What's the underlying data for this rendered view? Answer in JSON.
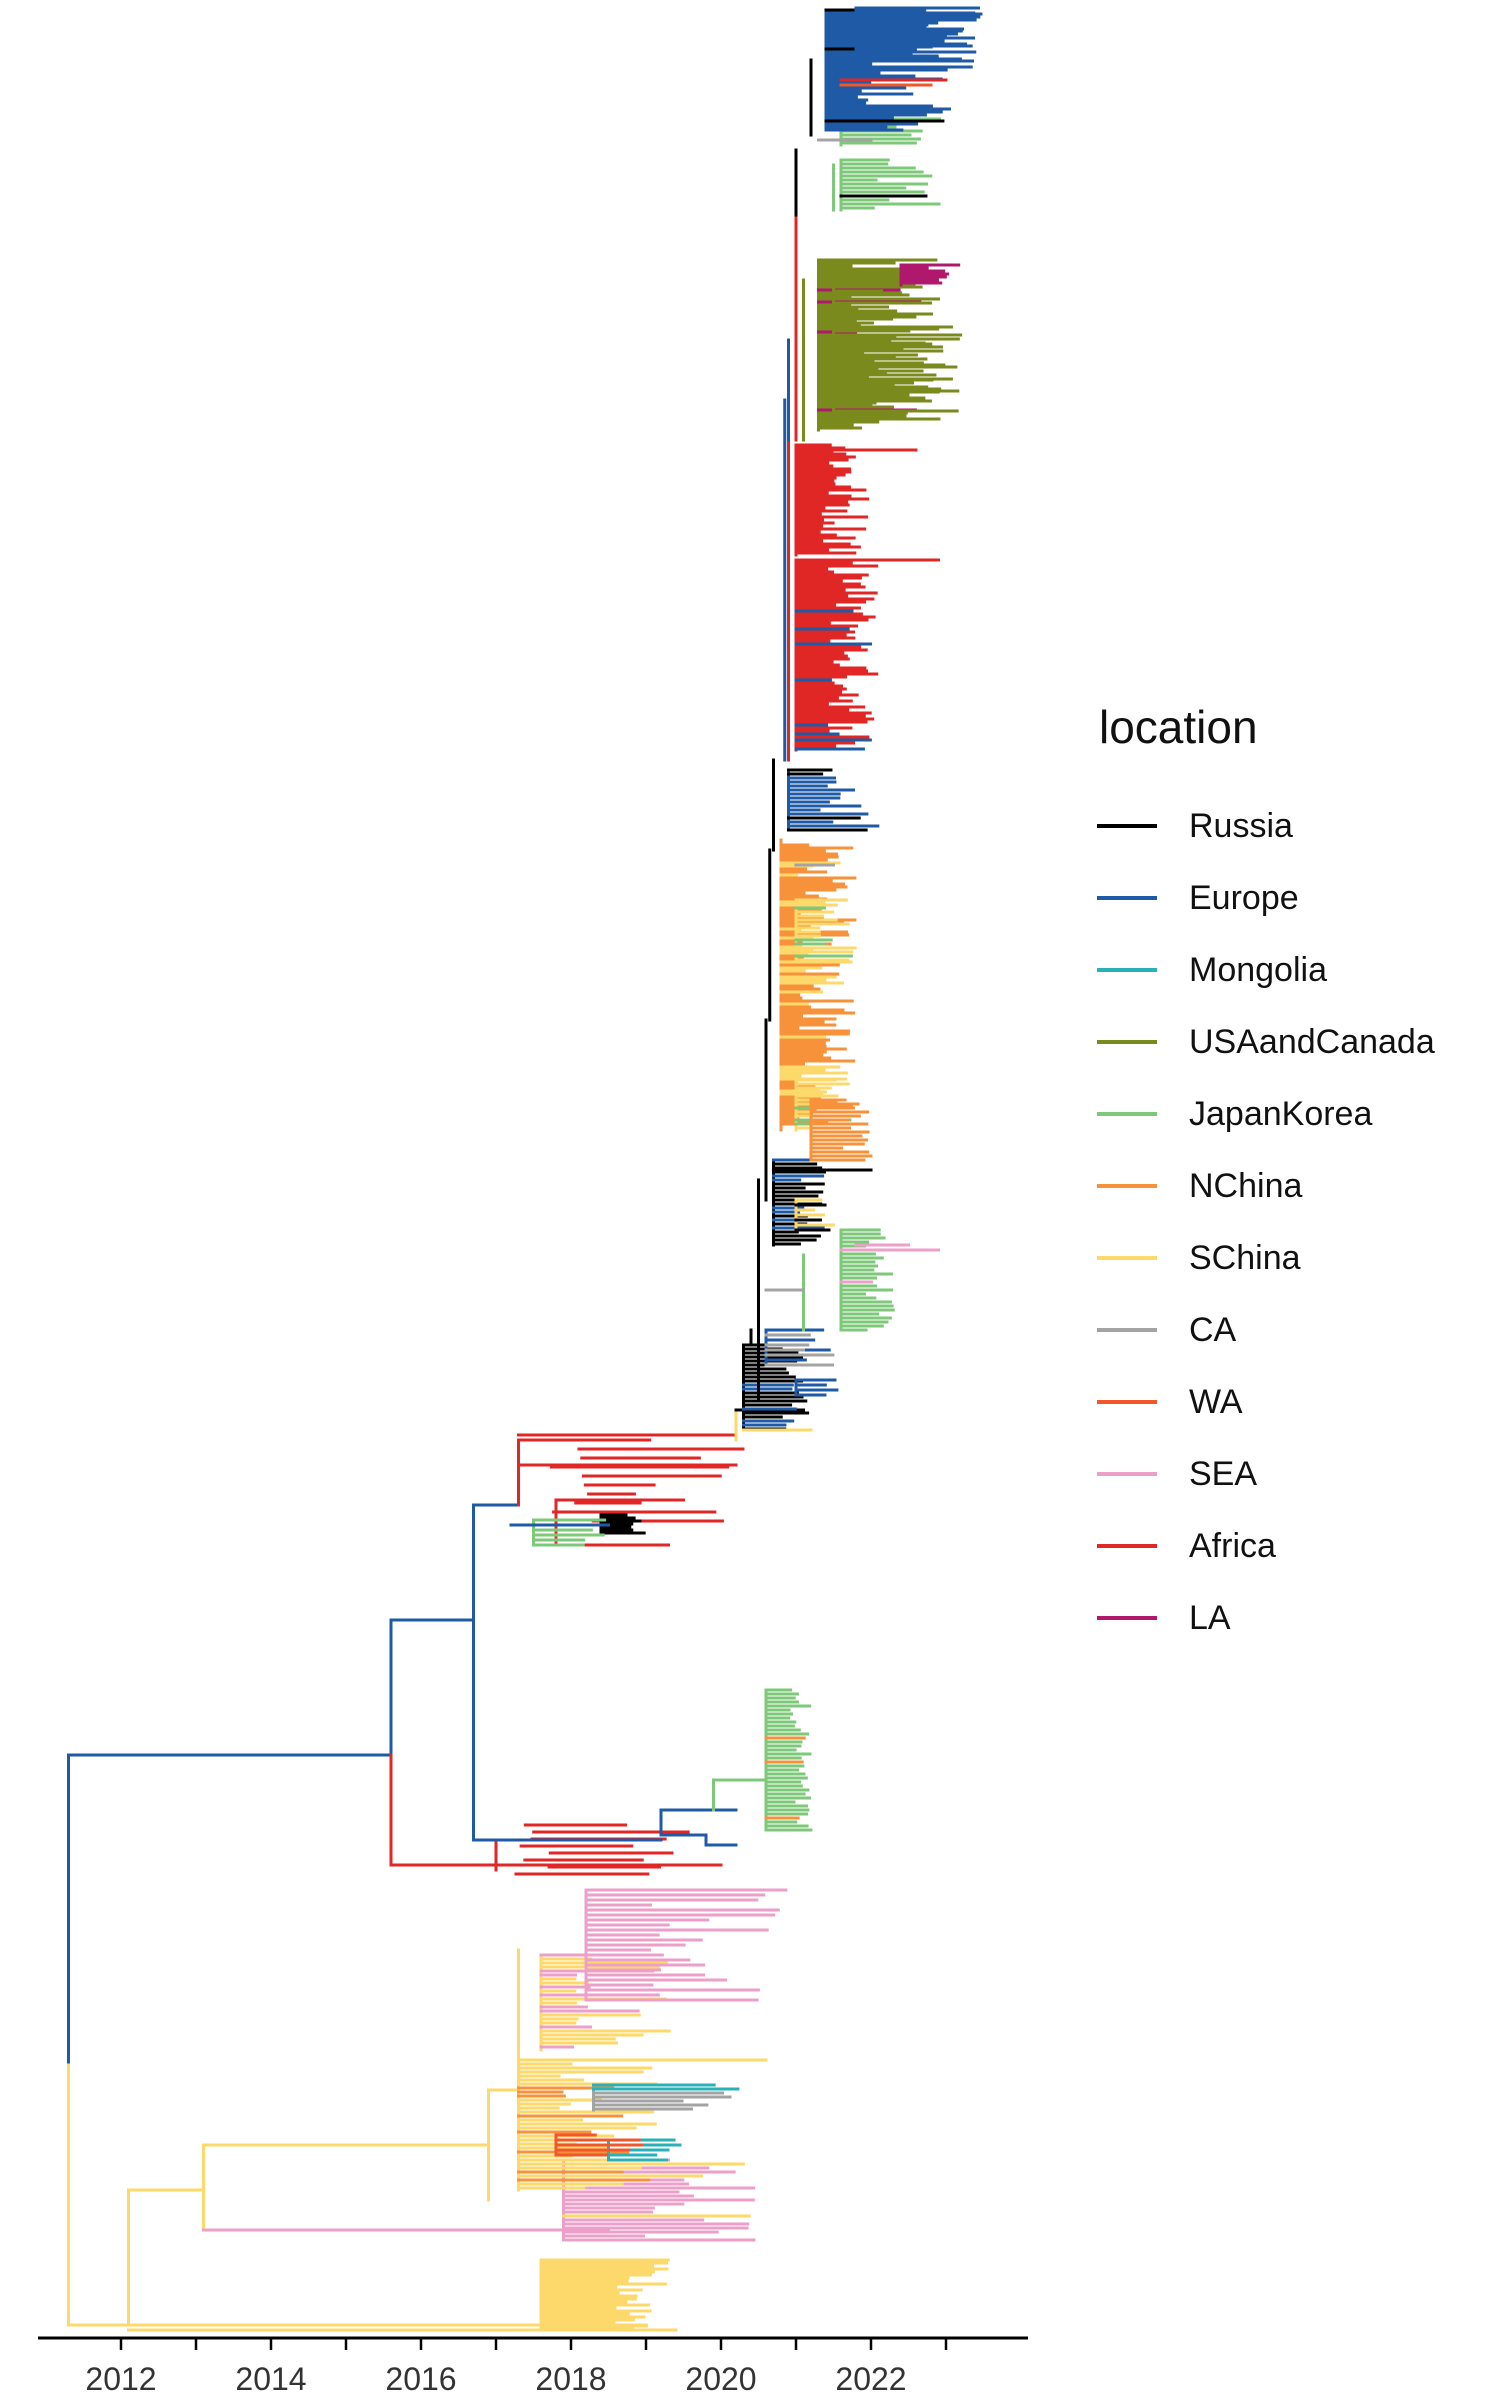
{
  "chart_data": {
    "type": "phylogenetic-tree",
    "xlabel": "",
    "ylabel": "",
    "xlim": [
      2011,
      2024
    ],
    "x_ticks": [
      "2012",
      "2014",
      "2016",
      "2018",
      "2020",
      "2022"
    ],
    "grid": false,
    "legend": {
      "title": "location",
      "placement": "right",
      "entries": [
        {
          "name": "Russia",
          "color": "#000000"
        },
        {
          "name": "Europe",
          "color": "#1f5aa6"
        },
        {
          "name": "Mongolia",
          "color": "#2ab0b8"
        },
        {
          "name": "USAandCanada",
          "color": "#7a8a1d"
        },
        {
          "name": "JapanKorea",
          "color": "#7ec87a"
        },
        {
          "name": "NChina",
          "color": "#f7923a"
        },
        {
          "name": "SChina",
          "color": "#fcd96a"
        },
        {
          "name": "CA",
          "color": "#a3a3a3"
        },
        {
          "name": "WA",
          "color": "#f2562b"
        },
        {
          "name": "SEA",
          "color": "#ec9fc8"
        },
        {
          "name": "Africa",
          "color": "#e12626"
        },
        {
          "name": "LA",
          "color": "#b0186e"
        }
      ]
    },
    "root": {
      "year": 2011.3,
      "location": "Europe/SChina"
    },
    "clades": [
      {
        "location": "Europe",
        "from": 2020.9,
        "to": 2023.3
      },
      {
        "location": "USAandCanada",
        "from": 2021.1,
        "to": 2023.3
      },
      {
        "location": "LA",
        "from": 2022.6,
        "to": 2023.2
      },
      {
        "location": "Africa",
        "from": 2020.9,
        "to": 2023.0
      },
      {
        "location": "JapanKorea",
        "from": 2021.4,
        "to": 2023.3
      },
      {
        "location": "NChina",
        "from": 2020.6,
        "to": 2021.8
      },
      {
        "location": "SChina",
        "from": 2017.3,
        "to": 2021.8
      },
      {
        "location": "SEA",
        "from": 2013.1,
        "to": 2023.0
      },
      {
        "location": "CA",
        "from": 2018.3,
        "to": 2020.3
      },
      {
        "location": "Mongolia",
        "from": 2019.0,
        "to": 2020.3
      },
      {
        "location": "Russia",
        "from": 2017.2,
        "to": 2022.0
      }
    ]
  }
}
